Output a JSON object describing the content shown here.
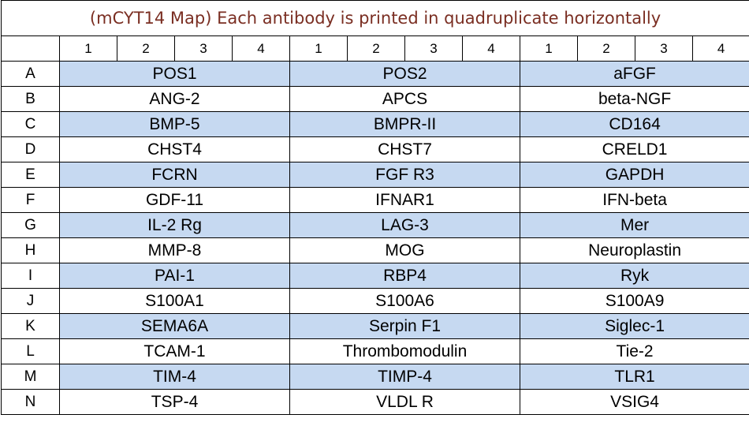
{
  "title": "(mCYT14 Map) Each antibody is printed in quadruplicate horizontally",
  "column_numbers": [
    "1",
    "2",
    "3",
    "4",
    "1",
    "2",
    "3",
    "4",
    "1",
    "2",
    "3",
    "4"
  ],
  "shading_color": "#c6d9f1",
  "title_color": "#7a2e22",
  "rows": [
    {
      "label": "A",
      "antibodies": [
        "POS1",
        "POS2",
        "aFGF"
      ],
      "shaded": true
    },
    {
      "label": "B",
      "antibodies": [
        "ANG-2",
        "APCS",
        "beta-NGF"
      ],
      "shaded": false
    },
    {
      "label": "C",
      "antibodies": [
        "BMP-5",
        "BMPR-II",
        "CD164"
      ],
      "shaded": true
    },
    {
      "label": "D",
      "antibodies": [
        "CHST4",
        "CHST7",
        "CRELD1"
      ],
      "shaded": false
    },
    {
      "label": "E",
      "antibodies": [
        "FCRN",
        "FGF R3",
        "GAPDH"
      ],
      "shaded": true
    },
    {
      "label": "F",
      "antibodies": [
        "GDF-11",
        "IFNAR1",
        "IFN-beta"
      ],
      "shaded": false
    },
    {
      "label": "G",
      "antibodies": [
        "IL-2 Rg",
        "LAG-3",
        "Mer"
      ],
      "shaded": true
    },
    {
      "label": "H",
      "antibodies": [
        "MMP-8",
        "MOG",
        "Neuroplastin"
      ],
      "shaded": false
    },
    {
      "label": "I",
      "antibodies": [
        "PAI-1",
        "RBP4",
        "Ryk"
      ],
      "shaded": true
    },
    {
      "label": "J",
      "antibodies": [
        "S100A1",
        "S100A6",
        "S100A9"
      ],
      "shaded": false
    },
    {
      "label": "K",
      "antibodies": [
        "SEMA6A",
        "Serpin F1",
        "Siglec-1"
      ],
      "shaded": true
    },
    {
      "label": "L",
      "antibodies": [
        "TCAM-1",
        "Thrombomodulin",
        "Tie-2"
      ],
      "shaded": false
    },
    {
      "label": "M",
      "antibodies": [
        "TIM-4",
        "TIMP-4",
        "TLR1"
      ],
      "shaded": true
    },
    {
      "label": "N",
      "antibodies": [
        "TSP-4",
        "VLDL R",
        "VSIG4"
      ],
      "shaded": false
    }
  ]
}
